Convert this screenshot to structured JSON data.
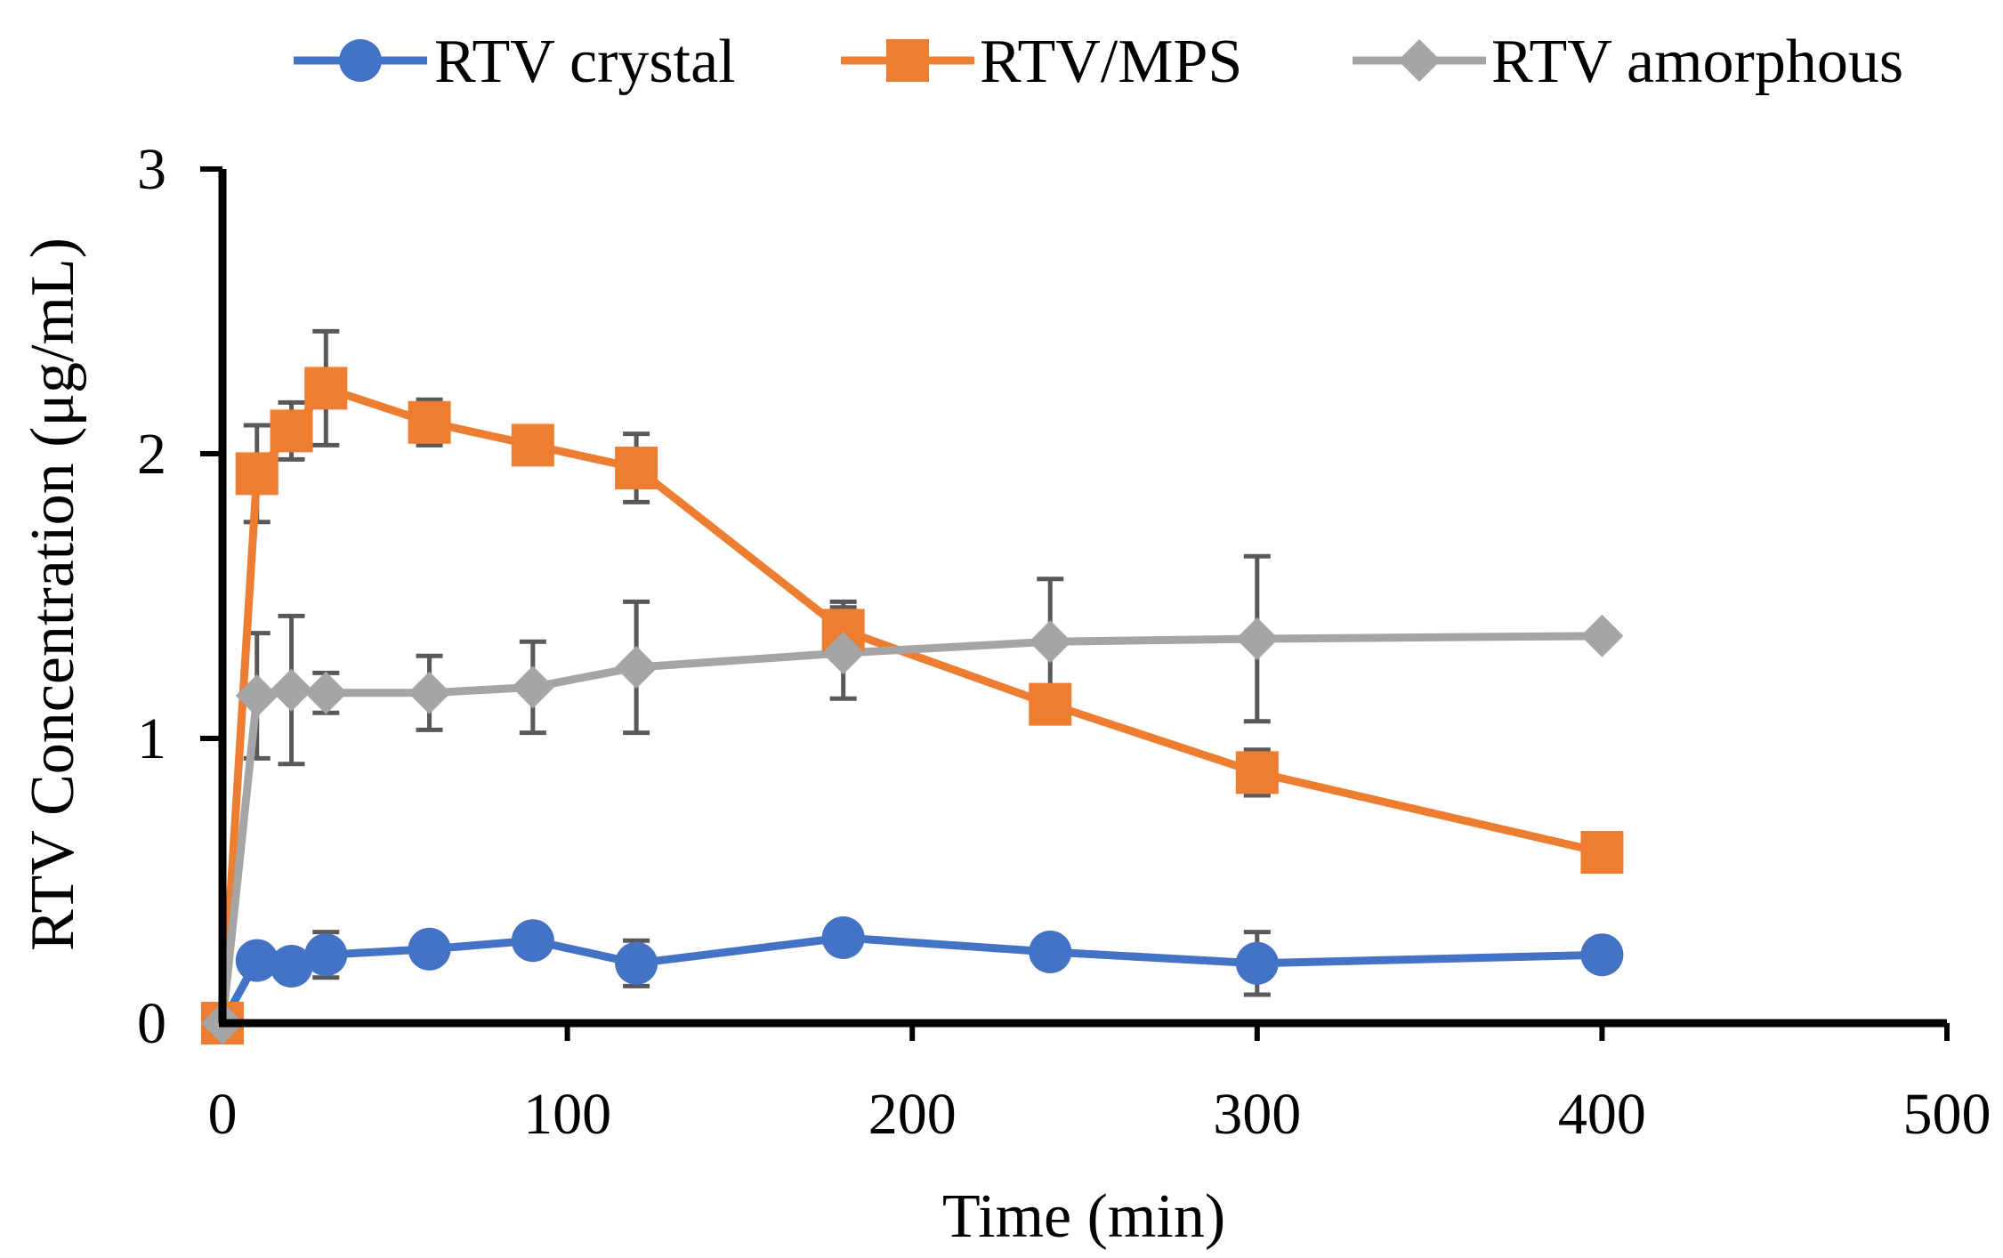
{
  "chart_data": {
    "type": "line",
    "title": "",
    "xlabel": "Time (min)",
    "ylabel": "RTV Concentration  (μg/mL)",
    "xlim": [
      0,
      500
    ],
    "ylim": [
      0,
      3
    ],
    "x_ticks": [
      "0",
      "100",
      "200",
      "300",
      "400",
      "500"
    ],
    "y_ticks": [
      "0",
      "1",
      "2",
      "3"
    ],
    "grid": false,
    "legend_position": "top",
    "x": [
      0,
      10,
      20,
      30,
      60,
      90,
      120,
      180,
      240,
      300,
      400
    ],
    "series": [
      {
        "name": "RTV crystal",
        "color": "#4472C4",
        "marker": "circle",
        "values": [
          0,
          0.22,
          0.2,
          0.24,
          0.26,
          0.29,
          0.21,
          0.3,
          0.25,
          0.21,
          0.24
        ],
        "error": [
          0,
          0,
          0,
          0.08,
          0,
          0,
          0.08,
          0,
          0.05,
          0.11,
          0
        ]
      },
      {
        "name": "RTV/MPS",
        "color": "#ED7D31",
        "marker": "square",
        "values": [
          0,
          1.93,
          2.08,
          2.23,
          2.11,
          2.03,
          1.95,
          1.38,
          1.12,
          0.88,
          0.6
        ],
        "error": [
          0,
          0.17,
          0.1,
          0.2,
          0.08,
          0,
          0.12,
          0.1,
          0,
          0.08,
          0
        ]
      },
      {
        "name": "RTV amorphous",
        "color": "#A5A5A5",
        "marker": "diamond",
        "values": [
          0,
          1.15,
          1.17,
          1.16,
          1.16,
          1.18,
          1.25,
          1.3,
          1.34,
          1.35,
          1.36
        ],
        "error": [
          0,
          0.22,
          0.26,
          0.07,
          0.13,
          0.16,
          0.23,
          0.16,
          0.22,
          0.29,
          0
        ]
      }
    ]
  }
}
